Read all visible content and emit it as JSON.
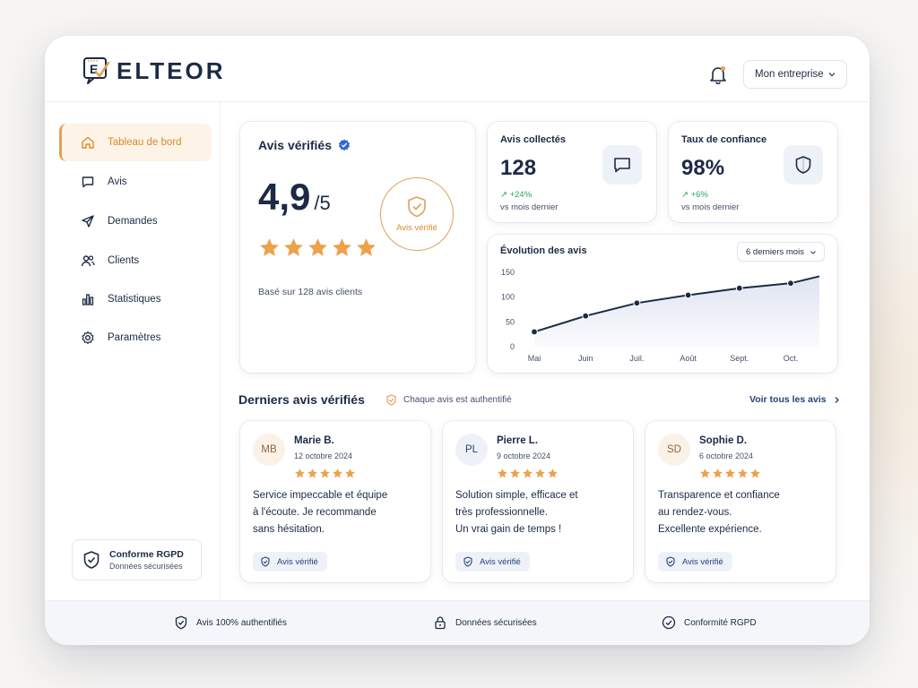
{
  "brand": {
    "name": "ELTEOR"
  },
  "header": {
    "company_selector": "Mon entreprise"
  },
  "sidebar": {
    "items": [
      {
        "label": "Tableau de bord",
        "icon": "home-icon",
        "active": true
      },
      {
        "label": "Avis",
        "icon": "chat-icon",
        "active": false
      },
      {
        "label": "Demandes",
        "icon": "send-icon",
        "active": false
      },
      {
        "label": "Clients",
        "icon": "users-icon",
        "active": false
      },
      {
        "label": "Statistiques",
        "icon": "bar-chart-icon",
        "active": false
      },
      {
        "label": "Paramètres",
        "icon": "gear-icon",
        "active": false
      }
    ],
    "compliance": {
      "title": "Conforme RGPD",
      "subtitle": "Données sécurisées"
    }
  },
  "verified_card": {
    "title": "Avis vérifiés",
    "rating": "4,9",
    "rating_max": "/5",
    "stars": 5,
    "badge_label": "Avis vérifié",
    "based_on": "Basé sur 128 avis clients"
  },
  "stats": [
    {
      "title": "Avis collectés",
      "value": "128",
      "delta": "↗ +24%",
      "sub": "vs mois dernier",
      "icon": "chat-icon"
    },
    {
      "title": "Taux de confiance",
      "value": "98%",
      "delta": "↗ +6%",
      "sub": "vs mois dernier",
      "icon": "shield-icon"
    }
  ],
  "chart": {
    "title": "Évolution des avis",
    "period_selector": "6 derniers mois"
  },
  "chart_data": {
    "type": "area",
    "title": "Évolution des avis",
    "categories": [
      "Mai",
      "Juin",
      "Juil.",
      "Août",
      "Sept.",
      "Oct."
    ],
    "x": [
      "Mai",
      "Juin",
      "Juil.",
      "Août",
      "Sept.",
      "Oct."
    ],
    "values": [
      30,
      62,
      88,
      104,
      118,
      128
    ],
    "end_value": 142,
    "yticks": [
      0,
      50,
      100,
      150
    ],
    "ylim": [
      0,
      150
    ],
    "grid": false,
    "legend": "none",
    "line_color": "#1c2a45",
    "fill_color": "#dfe4f0"
  },
  "reviews_section": {
    "title": "Derniers avis vérifiés",
    "note": "Chaque avis est authentifié",
    "see_all": "Voir tous les avis"
  },
  "reviews": [
    {
      "initials": "MB",
      "name": "Marie B.",
      "date": "12 octobre 2024",
      "stars": 5,
      "lines": [
        "Service impeccable et équipe",
        "à l'écoute. Je recommande",
        "sans hésitation."
      ],
      "badge": "Avis vérifié",
      "avatar_bg": "#fbf1e6",
      "avatar_fg": "#8a6a45"
    },
    {
      "initials": "PL",
      "name": "Pierre L.",
      "date": "9 octobre 2024",
      "stars": 5,
      "lines": [
        "Solution simple, efficace et",
        "très professionnelle.",
        "Un vrai gain de temps !"
      ],
      "badge": "Avis vérifié",
      "avatar_bg": "#eef2f8",
      "avatar_fg": "#25427a"
    },
    {
      "initials": "SD",
      "name": "Sophie D.",
      "date": "6 octobre 2024",
      "stars": 5,
      "lines": [
        "Transparence et confiance",
        "au rendez-vous.",
        "Excellente expérience."
      ],
      "badge": "Avis vérifié",
      "avatar_bg": "#fbf1e6",
      "avatar_fg": "#8a6a45"
    }
  ],
  "footer": {
    "items": [
      {
        "label": "Avis 100% authentifiés",
        "icon": "shield-check-icon"
      },
      {
        "label": "Données sécurisées",
        "icon": "lock-icon"
      },
      {
        "label": "Conformité RGPD",
        "icon": "check-circle-icon"
      }
    ]
  },
  "colors": {
    "accent": "#e0a258",
    "navy": "#1c2a45",
    "star": "#eda14a",
    "positive": "#2aa660"
  }
}
